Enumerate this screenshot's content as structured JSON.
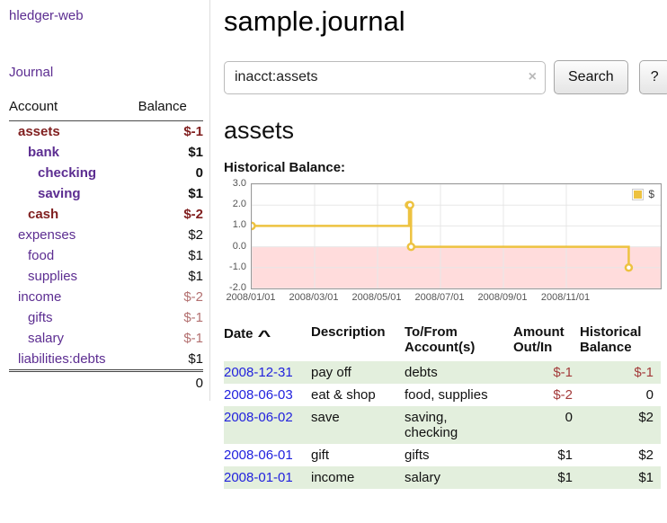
{
  "colors": {
    "link_purple": "#5c2d91",
    "link_blue": "#2222dd",
    "negative": "#a33a3a",
    "negative_bold": "#801f1f",
    "negative_muted": "#b37070",
    "row_highlight_green": "#e3efdd",
    "chart_series_yellow": "#edc240",
    "chart_negative_region": "#ffdcdc"
  },
  "sidebar": {
    "app_title": "hledger-web",
    "journal_label": "Journal",
    "accounts": {
      "header_account": "Account",
      "header_balance": "Balance",
      "rows": [
        {
          "name": "assets",
          "balance": "$-1",
          "indent": 1,
          "bold": true,
          "name_negative": true,
          "balance_negative": true
        },
        {
          "name": "bank",
          "balance": "$1",
          "indent": 2,
          "bold": true,
          "name_negative": false,
          "balance_negative": false
        },
        {
          "name": "checking",
          "balance": "0",
          "indent": 3,
          "bold": true,
          "name_negative": false,
          "balance_negative": false
        },
        {
          "name": "saving",
          "balance": "$1",
          "indent": 3,
          "bold": true,
          "name_negative": false,
          "balance_negative": false
        },
        {
          "name": "cash",
          "balance": "$-2",
          "indent": 2,
          "bold": true,
          "name_negative": true,
          "balance_negative": true
        },
        {
          "name": "expenses",
          "balance": "$2",
          "indent": 1,
          "bold": false,
          "name_negative": false,
          "balance_negative": false
        },
        {
          "name": "food",
          "balance": "$1",
          "indent": 2,
          "bold": false,
          "name_negative": false,
          "balance_negative": false
        },
        {
          "name": "supplies",
          "balance": "$1",
          "indent": 2,
          "bold": false,
          "name_negative": false,
          "balance_negative": false
        },
        {
          "name": "income",
          "balance": "$-2",
          "indent": 1,
          "bold": false,
          "name_negative": false,
          "balance_negative": true
        },
        {
          "name": "gifts",
          "balance": "$-1",
          "indent": 2,
          "bold": false,
          "name_negative": false,
          "balance_negative": true
        },
        {
          "name": "salary",
          "balance": "$-1",
          "indent": 2,
          "bold": false,
          "name_negative": false,
          "balance_negative": true
        },
        {
          "name": "liabilities:debts",
          "balance": "$1",
          "indent": 1,
          "bold": false,
          "name_negative": false,
          "balance_negative": false
        }
      ],
      "total": "0"
    }
  },
  "main": {
    "title": "sample.journal",
    "search": {
      "value": "inacct:assets",
      "clear_icon": "×",
      "button_label": "Search",
      "help_label": "?"
    },
    "account_heading": "assets",
    "chart_title": "Historical Balance:",
    "chart_data": {
      "type": "line",
      "step": true,
      "series": [
        {
          "name": "$",
          "color": "#edc240",
          "points": [
            [
              "2008-01-01",
              1
            ],
            [
              "2008-06-01",
              2
            ],
            [
              "2008-06-02",
              2
            ],
            [
              "2008-06-03",
              0
            ],
            [
              "2008-12-31",
              -1
            ]
          ]
        }
      ],
      "x_ticks": [
        "2008/01/01",
        "2008/03/01",
        "2008/05/01",
        "2008/07/01",
        "2008/09/01",
        "2008/11/01"
      ],
      "x_tick_interval_months": 2,
      "xlim_months": [
        0,
        13
      ],
      "y_ticks": [
        "3.0",
        "2.0",
        "1.0",
        "0.0",
        "-1.0",
        "-2.0"
      ],
      "ylim": [
        -2,
        3
      ],
      "grid": true,
      "legend_position": "top-right",
      "negative_region_color": "#ffdcdc"
    },
    "register": {
      "headers": {
        "date": "Date",
        "sort_indicator": "^",
        "description": "Description",
        "tofrom": "To/From\nAccount(s)",
        "amount": "Amount\nOut/In",
        "balance": "Historical\nBalance"
      },
      "rows": [
        {
          "date": "2008-12-31",
          "description": "pay off",
          "accounts": "debts",
          "amount": "$-1",
          "balance": "$-1"
        },
        {
          "date": "2008-06-03",
          "description": "eat & shop",
          "accounts": "food, supplies",
          "amount": "$-2",
          "balance": "0"
        },
        {
          "date": "2008-06-02",
          "description": "save",
          "accounts": "saving,\nchecking",
          "amount": "0",
          "balance": "$2"
        },
        {
          "date": "2008-06-01",
          "description": "gift",
          "accounts": "gifts",
          "amount": "$1",
          "balance": "$2"
        },
        {
          "date": "2008-01-01",
          "description": "income",
          "accounts": "salary",
          "amount": "$1",
          "balance": "$1"
        }
      ]
    }
  }
}
